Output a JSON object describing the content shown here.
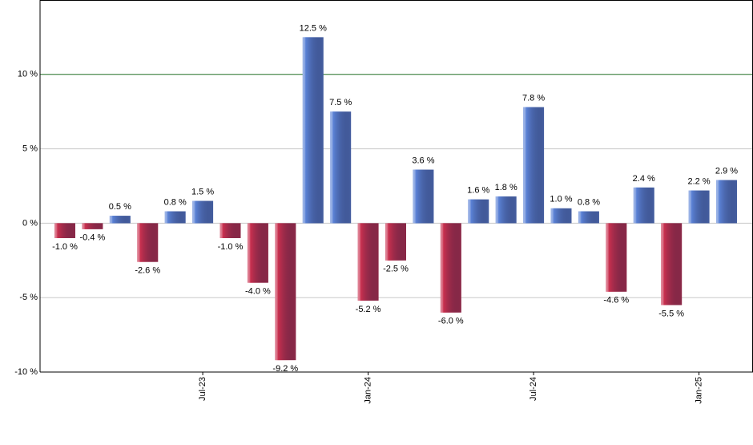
{
  "chart_data": {
    "type": "bar",
    "categories": [
      null,
      null,
      null,
      null,
      null,
      "Jul-23",
      null,
      null,
      null,
      null,
      null,
      "Jan-24",
      null,
      null,
      null,
      null,
      null,
      "Jul-24",
      null,
      null,
      null,
      null,
      null,
      "Jan-25",
      null
    ],
    "values": [
      -1.0,
      -0.4,
      0.5,
      -2.6,
      0.8,
      1.5,
      -1.0,
      -4.0,
      -9.2,
      12.5,
      7.5,
      -5.2,
      -2.5,
      3.6,
      -6.0,
      1.6,
      1.8,
      7.8,
      1.0,
      0.8,
      -4.6,
      2.4,
      -5.5,
      2.2,
      2.9
    ],
    "value_labels": [
      "-1.0 %",
      "-0.4 %",
      "0.5 %",
      "-2.6 %",
      "0.8 %",
      "1.5 %",
      "-1.0 %",
      "-4.0 %",
      "-9.2 %",
      "12.5 %",
      "7.5 %",
      "-5.2 %",
      "-2.5 %",
      "3.6 %",
      "-6.0 %",
      "1.6 %",
      "1.8 %",
      "7.8 %",
      "1.0 %",
      "0.8 %",
      "-4.6 %",
      "2.4 %",
      "-5.5 %",
      "2.2 %",
      "2.9 %"
    ],
    "positive_color": "#5b82d6",
    "negative_color": "#c9304f",
    "ylim": [
      -10,
      15
    ],
    "yticks": [
      {
        "value": -10,
        "label": "-10 %"
      },
      {
        "value": -5,
        "label": "-5 %"
      },
      {
        "value": 0,
        "label": "0 %"
      },
      {
        "value": 5,
        "label": "5 %"
      },
      {
        "value": 10,
        "label": "10 %"
      }
    ],
    "reference_line": {
      "value": 10,
      "color": "#2e7d32"
    },
    "grid": true
  }
}
